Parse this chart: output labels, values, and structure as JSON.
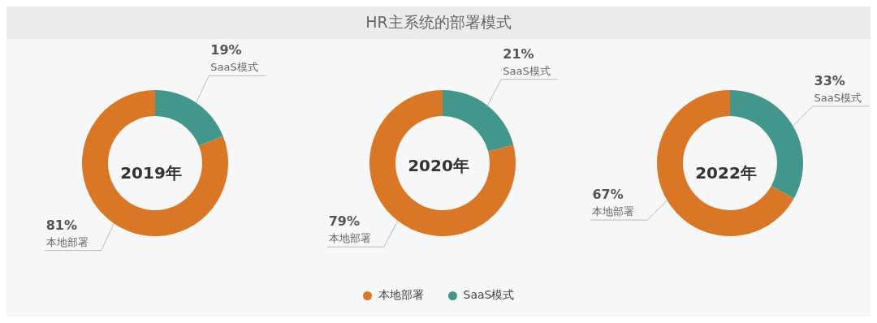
{
  "chart_data": [
    {
      "type": "donut",
      "annotations": [
        "2019年"
      ],
      "categories": [
        "本地部署",
        "SaaS模式"
      ],
      "values": [
        81,
        19
      ],
      "colors": [
        "#d97726",
        "#42968c"
      ],
      "value_labels": [
        "81%",
        "19%"
      ]
    },
    {
      "type": "donut",
      "title": "HR主系统的部署模式",
      "annotations": [
        "2020年"
      ],
      "categories": [
        "本地部署",
        "SaaS模式"
      ],
      "values": [
        79,
        21
      ],
      "colors": [
        "#d97726",
        "#42968c"
      ],
      "value_labels": [
        "79%",
        "21%"
      ],
      "legend": "bottom"
    },
    {
      "type": "donut",
      "annotations": [
        "2022年"
      ],
      "categories": [
        "本地部署",
        "SaaS模式"
      ],
      "values": [
        67,
        33
      ],
      "colors": [
        "#d97726",
        "#42968c"
      ],
      "value_labels": [
        "67%",
        "33%"
      ]
    }
  ]
}
